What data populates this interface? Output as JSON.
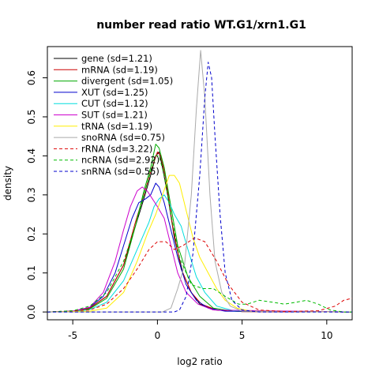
{
  "chart_data": {
    "type": "line",
    "title": "number read ratio WT.G1/xrn1.G1",
    "xlabel": "log2 ratio",
    "ylabel": "density",
    "xlim": [
      -6.5,
      11.5
    ],
    "ylim": [
      -0.02,
      0.68
    ],
    "xticks": [
      -5,
      0,
      5,
      10
    ],
    "yticks": [
      0.0,
      0.1,
      0.2,
      0.3,
      0.4,
      0.5,
      0.6
    ],
    "xtick_labels": [
      "-5",
      "0",
      "5",
      "10"
    ],
    "ytick_labels": [
      "0.0",
      "0.1",
      "0.2",
      "0.3",
      "0.4",
      "0.5",
      "0.6"
    ],
    "legend_position": "top-left",
    "series": [
      {
        "name": "gene (sd=1.21)",
        "color": "#000000",
        "dash": "solid",
        "points": [
          [
            -6.5,
            0
          ],
          [
            -5,
            0.002
          ],
          [
            -4,
            0.01
          ],
          [
            -3,
            0.04
          ],
          [
            -2,
            0.12
          ],
          [
            -1.3,
            0.22
          ],
          [
            -0.8,
            0.29
          ],
          [
            -0.4,
            0.35
          ],
          [
            -0.1,
            0.4
          ],
          [
            0.1,
            0.41
          ],
          [
            0.3,
            0.37
          ],
          [
            0.6,
            0.3
          ],
          [
            1,
            0.19
          ],
          [
            1.5,
            0.1
          ],
          [
            2,
            0.05
          ],
          [
            2.5,
            0.02
          ],
          [
            3.5,
            0.005
          ],
          [
            5,
            0.001
          ],
          [
            11.5,
            0
          ]
        ]
      },
      {
        "name": "mRNA (sd=1.19)",
        "color": "#cc0000",
        "dash": "solid",
        "points": [
          [
            -6.5,
            0
          ],
          [
            -5,
            0.002
          ],
          [
            -4,
            0.01
          ],
          [
            -3,
            0.04
          ],
          [
            -2,
            0.12
          ],
          [
            -1.3,
            0.23
          ],
          [
            -0.8,
            0.3
          ],
          [
            -0.4,
            0.36
          ],
          [
            0,
            0.41
          ],
          [
            0.2,
            0.4
          ],
          [
            0.5,
            0.34
          ],
          [
            0.9,
            0.22
          ],
          [
            1.4,
            0.11
          ],
          [
            2,
            0.05
          ],
          [
            2.6,
            0.02
          ],
          [
            3.5,
            0.005
          ],
          [
            5,
            0.001
          ],
          [
            11.5,
            0
          ]
        ]
      },
      {
        "name": "divergent (sd=1.05)",
        "color": "#00aa00",
        "dash": "solid",
        "points": [
          [
            -6.5,
            0
          ],
          [
            -5,
            0.001
          ],
          [
            -4,
            0.008
          ],
          [
            -3,
            0.035
          ],
          [
            -2,
            0.11
          ],
          [
            -1.3,
            0.22
          ],
          [
            -0.8,
            0.31
          ],
          [
            -0.4,
            0.37
          ],
          [
            -0.1,
            0.43
          ],
          [
            0.1,
            0.42
          ],
          [
            0.4,
            0.37
          ],
          [
            0.8,
            0.27
          ],
          [
            1.2,
            0.17
          ],
          [
            1.8,
            0.09
          ],
          [
            2.5,
            0.04
          ],
          [
            3.3,
            0.01
          ],
          [
            4.5,
            0.002
          ],
          [
            11.5,
            0
          ]
        ]
      },
      {
        "name": "XUT (sd=1.25)",
        "color": "#0000cc",
        "dash": "solid",
        "points": [
          [
            -6.5,
            0
          ],
          [
            -5,
            0.002
          ],
          [
            -4,
            0.012
          ],
          [
            -3.2,
            0.04
          ],
          [
            -2.5,
            0.1
          ],
          [
            -2,
            0.17
          ],
          [
            -1.5,
            0.24
          ],
          [
            -1.1,
            0.28
          ],
          [
            -0.7,
            0.29
          ],
          [
            -0.4,
            0.3
          ],
          [
            -0.1,
            0.33
          ],
          [
            0.1,
            0.32
          ],
          [
            0.4,
            0.28
          ],
          [
            0.8,
            0.21
          ],
          [
            1.2,
            0.14
          ],
          [
            1.7,
            0.07
          ],
          [
            2.3,
            0.03
          ],
          [
            3,
            0.01
          ],
          [
            4,
            0.002
          ],
          [
            11.5,
            0
          ]
        ]
      },
      {
        "name": "CUT (sd=1.12)",
        "color": "#00dddd",
        "dash": "solid",
        "points": [
          [
            -6.5,
            0
          ],
          [
            -5,
            0.001
          ],
          [
            -4,
            0.006
          ],
          [
            -3,
            0.025
          ],
          [
            -2,
            0.08
          ],
          [
            -1.4,
            0.14
          ],
          [
            -0.9,
            0.19
          ],
          [
            -0.5,
            0.23
          ],
          [
            -0.2,
            0.27
          ],
          [
            0.1,
            0.29
          ],
          [
            0.4,
            0.3
          ],
          [
            0.7,
            0.28
          ],
          [
            1,
            0.25
          ],
          [
            1.4,
            0.22
          ],
          [
            1.8,
            0.16
          ],
          [
            2.3,
            0.09
          ],
          [
            2.8,
            0.05
          ],
          [
            3.5,
            0.015
          ],
          [
            4.5,
            0.003
          ],
          [
            11.5,
            0
          ]
        ]
      },
      {
        "name": "SUT (sd=1.21)",
        "color": "#cc00cc",
        "dash": "solid",
        "points": [
          [
            -6.5,
            0
          ],
          [
            -5,
            0.002
          ],
          [
            -4,
            0.012
          ],
          [
            -3.2,
            0.05
          ],
          [
            -2.5,
            0.13
          ],
          [
            -2,
            0.21
          ],
          [
            -1.6,
            0.27
          ],
          [
            -1.2,
            0.31
          ],
          [
            -0.9,
            0.32
          ],
          [
            -0.6,
            0.31
          ],
          [
            -0.3,
            0.29
          ],
          [
            0,
            0.27
          ],
          [
            0.4,
            0.24
          ],
          [
            0.8,
            0.17
          ],
          [
            1.2,
            0.1
          ],
          [
            1.7,
            0.05
          ],
          [
            2.4,
            0.02
          ],
          [
            3.3,
            0.005
          ],
          [
            11.5,
            0
          ]
        ]
      },
      {
        "name": "tRNA (sd=1.19)",
        "color": "#ffee00",
        "dash": "solid",
        "points": [
          [
            -6.5,
            0
          ],
          [
            -4,
            0.002
          ],
          [
            -3,
            0.01
          ],
          [
            -2,
            0.05
          ],
          [
            -1.2,
            0.13
          ],
          [
            -0.6,
            0.2
          ],
          [
            -0.1,
            0.25
          ],
          [
            0.3,
            0.3
          ],
          [
            0.7,
            0.35
          ],
          [
            1,
            0.35
          ],
          [
            1.3,
            0.33
          ],
          [
            1.7,
            0.26
          ],
          [
            2.1,
            0.19
          ],
          [
            2.5,
            0.14
          ],
          [
            3,
            0.1
          ],
          [
            3.5,
            0.06
          ],
          [
            4,
            0.03
          ],
          [
            4.7,
            0.01
          ],
          [
            5.5,
            0.002
          ],
          [
            11.5,
            0
          ]
        ]
      },
      {
        "name": "snoRNA (sd=0.75)",
        "color": "#aaaaaa",
        "dash": "solid",
        "points": [
          [
            -6.5,
            0
          ],
          [
            0.3,
            0
          ],
          [
            0.8,
            0.01
          ],
          [
            1.2,
            0.06
          ],
          [
            1.6,
            0.12
          ],
          [
            2,
            0.3
          ],
          [
            2.3,
            0.52
          ],
          [
            2.55,
            0.67
          ],
          [
            2.8,
            0.55
          ],
          [
            3.1,
            0.3
          ],
          [
            3.4,
            0.13
          ],
          [
            3.8,
            0.05
          ],
          [
            4.3,
            0.015
          ],
          [
            5,
            0.002
          ],
          [
            11.5,
            0
          ]
        ]
      },
      {
        "name": "rRNA (sd=3.22)",
        "color": "#dd0000",
        "dash": "dashed",
        "points": [
          [
            -6.5,
            0
          ],
          [
            -4,
            0.005
          ],
          [
            -3,
            0.02
          ],
          [
            -2,
            0.06
          ],
          [
            -1.2,
            0.11
          ],
          [
            -0.5,
            0.16
          ],
          [
            0,
            0.18
          ],
          [
            0.5,
            0.18
          ],
          [
            1,
            0.16
          ],
          [
            1.5,
            0.17
          ],
          [
            2.2,
            0.19
          ],
          [
            2.8,
            0.18
          ],
          [
            3.5,
            0.13
          ],
          [
            4.2,
            0.07
          ],
          [
            5,
            0.025
          ],
          [
            6,
            0.005
          ],
          [
            7.5,
            0.001
          ],
          [
            9.5,
            0.003
          ],
          [
            10.5,
            0.015
          ],
          [
            11,
            0.03
          ],
          [
            11.5,
            0.035
          ]
        ]
      },
      {
        "name": "ncRNA (sd=2.92)",
        "color": "#00bb00",
        "dash": "dashed",
        "points": [
          [
            -6.5,
            0
          ],
          [
            -5,
            0.003
          ],
          [
            -4,
            0.015
          ],
          [
            -3,
            0.05
          ],
          [
            -2,
            0.13
          ],
          [
            -1.3,
            0.22
          ],
          [
            -0.8,
            0.3
          ],
          [
            -0.4,
            0.36
          ],
          [
            -0.1,
            0.4
          ],
          [
            0.1,
            0.4
          ],
          [
            0.4,
            0.35
          ],
          [
            0.8,
            0.25
          ],
          [
            1.3,
            0.14
          ],
          [
            2,
            0.07
          ],
          [
            2.7,
            0.06
          ],
          [
            3.3,
            0.06
          ],
          [
            4,
            0.04
          ],
          [
            4.8,
            0.02
          ],
          [
            5.3,
            0.02
          ],
          [
            6,
            0.03
          ],
          [
            6.8,
            0.025
          ],
          [
            7.5,
            0.02
          ],
          [
            8.2,
            0.025
          ],
          [
            8.8,
            0.03
          ],
          [
            9.5,
            0.02
          ],
          [
            10.2,
            0.005
          ],
          [
            11,
            0
          ],
          [
            11.5,
            0
          ]
        ]
      },
      {
        "name": "snRNA (sd=0.55)",
        "color": "#0000cc",
        "dash": "dashed",
        "points": [
          [
            -6.5,
            0
          ],
          [
            1,
            0
          ],
          [
            1.3,
            0.005
          ],
          [
            1.7,
            0.04
          ],
          [
            2.1,
            0.15
          ],
          [
            2.5,
            0.35
          ],
          [
            2.8,
            0.55
          ],
          [
            3,
            0.64
          ],
          [
            3.2,
            0.6
          ],
          [
            3.4,
            0.45
          ],
          [
            3.7,
            0.25
          ],
          [
            4,
            0.1
          ],
          [
            4.4,
            0.03
          ],
          [
            5,
            0.005
          ],
          [
            6,
            0
          ],
          [
            11.5,
            0
          ]
        ]
      }
    ]
  }
}
